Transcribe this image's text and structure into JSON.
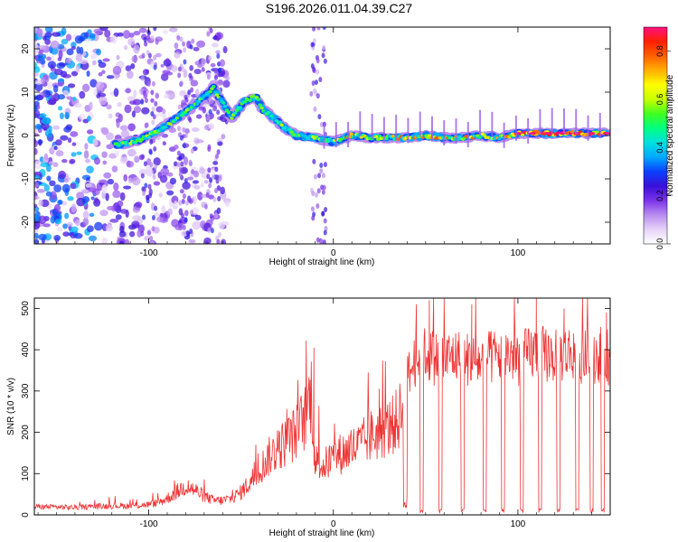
{
  "title": "S196.2026.011.04.39.C27",
  "chart_data": [
    {
      "type": "heatmap",
      "xlabel": "Height of straight line (km)",
      "ylabel": "Frequency (Hz)",
      "xlim": [
        -162,
        150
      ],
      "ylim": [
        -25,
        25
      ],
      "xticks": [
        "-100",
        "0",
        "100"
      ],
      "xtick_values": [
        -100,
        0,
        100
      ],
      "yticks": [
        "-20",
        "-10",
        "0",
        "10",
        "20"
      ],
      "ytick_values": [
        -20,
        -10,
        0,
        10,
        20
      ],
      "ridge": {
        "description_points_x": [
          -115,
          -105,
          -95,
          -85,
          -75,
          -65,
          -55,
          -48,
          -42,
          -38,
          -32,
          -27,
          -20,
          -10,
          0,
          10,
          20,
          30,
          40,
          50,
          60,
          70,
          80,
          90,
          100,
          110,
          120,
          130,
          140,
          148
        ],
        "description_points_y": [
          -2,
          -1,
          1,
          4,
          7,
          11,
          4,
          8,
          9,
          6,
          4,
          2,
          0,
          -0.5,
          -1.5,
          0,
          -0.5,
          -0.5,
          -0.5,
          0,
          -0.5,
          -0.5,
          0,
          -0.5,
          0.5,
          0.5,
          0.5,
          0.5,
          0.5,
          0.5
        ]
      },
      "colorbar": {
        "label": "Normalized spectral amplitude",
        "range": [
          0,
          0.9
        ],
        "ticks": [
          "0.0",
          "0.2",
          "0.4",
          "0.6",
          "0.8"
        ],
        "tick_values": [
          0,
          0.2,
          0.4,
          0.6,
          0.8
        ],
        "colormap": [
          "#ffffff",
          "#e6d3f7",
          "#b98cf0",
          "#7a33e8",
          "#3a10d8",
          "#0a40ff",
          "#00a8ff",
          "#00e0e0",
          "#00ff80",
          "#40ff20",
          "#c8ff00",
          "#ffff00",
          "#ffb000",
          "#ff6000",
          "#ff2000",
          "#ff1080"
        ]
      }
    },
    {
      "type": "line",
      "xlabel": "Height of straight line (km)",
      "ylabel": "SNR (10 * v/v)",
      "xlim": [
        -162,
        150
      ],
      "ylim": [
        0,
        525
      ],
      "xticks": [
        "-100",
        "0",
        "100"
      ],
      "xtick_values": [
        -100,
        0,
        100
      ],
      "yticks": [
        "0",
        "100",
        "200",
        "300",
        "400",
        "500"
      ],
      "ytick_values": [
        0,
        100,
        200,
        300,
        400,
        500
      ],
      "line_color": "#ee3333",
      "envelope_x": [
        -162,
        -140,
        -120,
        -110,
        -100,
        -95,
        -90,
        -85,
        -80,
        -75,
        -70,
        -65,
        -60,
        -55,
        -50,
        -45,
        -40,
        -35,
        -30,
        -25,
        -20,
        -15,
        -12,
        -10,
        -5,
        0,
        5,
        10,
        15,
        20,
        25,
        30,
        35,
        38,
        40,
        43,
        45,
        50,
        55,
        60,
        65,
        70,
        75,
        80,
        85,
        90,
        95,
        100,
        105,
        110,
        115,
        120,
        125,
        130,
        135,
        140,
        145,
        150
      ],
      "envelope_y": [
        20,
        18,
        22,
        22,
        25,
        30,
        40,
        55,
        70,
        60,
        45,
        35,
        35,
        40,
        55,
        80,
        110,
        140,
        160,
        180,
        200,
        240,
        300,
        130,
        120,
        140,
        150,
        160,
        170,
        190,
        200,
        210,
        230,
        260,
        330,
        360,
        380,
        390,
        380,
        375,
        385,
        380,
        375,
        370,
        380,
        385,
        390,
        380,
        385,
        395,
        390,
        385,
        390,
        395,
        380,
        385,
        390,
        380
      ],
      "dropouts_x": [
        48,
        58,
        70,
        82,
        92,
        102,
        112,
        122,
        132,
        140,
        146
      ],
      "dropout_value": 5,
      "peak_samples": [
        {
          "x": -10.5,
          "y": 405
        },
        {
          "x": 45,
          "y": 510
        },
        {
          "x": 52,
          "y": 520
        },
        {
          "x": 60,
          "y": 515
        },
        {
          "x": 75,
          "y": 510
        },
        {
          "x": 110,
          "y": 525
        },
        {
          "x": 125,
          "y": 500
        },
        {
          "x": 148,
          "y": 490
        }
      ]
    }
  ]
}
